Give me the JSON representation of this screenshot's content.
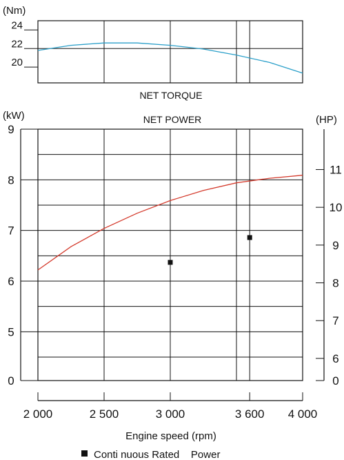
{
  "chart_data": [
    {
      "type": "line",
      "title": "NET TORQUE",
      "unit": "(Nm)",
      "x": [
        2000,
        2250,
        2500,
        2750,
        3000,
        3250,
        3500,
        3750,
        4000
      ],
      "yticks": [
        20,
        22,
        24
      ],
      "ylim": [
        18.3,
        25
      ],
      "series": [
        {
          "name": "",
          "color": "#2a9fc9",
          "y": [
            21.8,
            22.35,
            22.6,
            22.6,
            22.35,
            21.95,
            21.3,
            20.5,
            19.35
          ]
        }
      ],
      "reference_lines": [
        {
          "type": "horizontal",
          "y": 22.0
        }
      ],
      "vertical_lines_x": [
        2500,
        3000,
        3500,
        3600
      ]
    },
    {
      "type": "line",
      "title": "NET POWER",
      "ylabel_left": "(kW)",
      "ylabel_right": "(HP)",
      "xlabel": "Engine speed (rpm)",
      "xticks": [
        "2 000",
        "2 500",
        "3 000",
        "3 600",
        "4 000"
      ],
      "xtick_values": [
        2000,
        2500,
        3000,
        3600,
        4000
      ],
      "xlim": [
        2000,
        4000
      ],
      "yticks_left": [
        "0",
        "5",
        "6",
        "7",
        "8",
        "9"
      ],
      "yticks_right": [
        "0",
        "6",
        "7",
        "8",
        "9",
        "10",
        "11"
      ],
      "y_axis_note": "broken axis: 0 then 4.5 to 9 kW; HP ticks on right",
      "series": [
        {
          "name": "",
          "color": "#d43a2c",
          "x": [
            2000,
            2250,
            2500,
            2750,
            3000,
            3250,
            3500,
            3750,
            4000
          ],
          "y": [
            6.22,
            6.68,
            7.04,
            7.34,
            7.59,
            7.79,
            7.94,
            8.03,
            8.09
          ]
        }
      ],
      "points": [
        {
          "x": 3000,
          "y": 6.37
        },
        {
          "x": 3600,
          "y": 6.86
        }
      ],
      "vertical_lines_x": [
        2500,
        3000,
        3500,
        3600
      ]
    }
  ],
  "legend": {
    "label": "Conti nuous Rated    Power",
    "marker": "filled-square"
  }
}
